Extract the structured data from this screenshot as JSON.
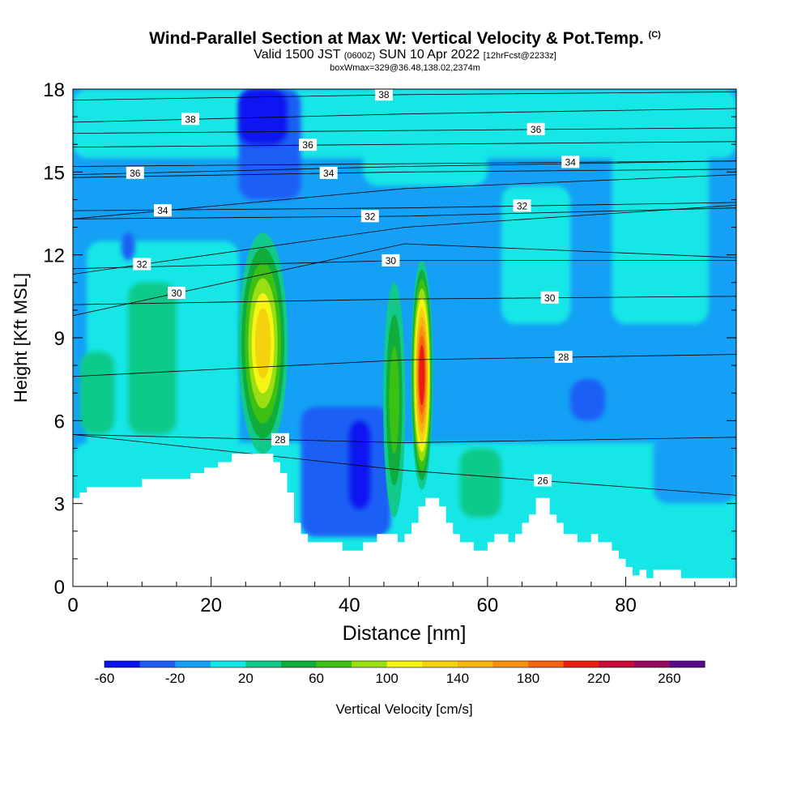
{
  "title": {
    "main": "Wind-Parallel Section at Max W: Vertical Velocity & Pot.Temp.",
    "main_suffix": "(C)",
    "valid_prefix": "Valid 1500 JST",
    "valid_zulu": "(0600Z)",
    "valid_date": "SUN 10 Apr 2022",
    "forecast": "[12hrFcst@2233z]",
    "box_info": "boxWmax=329@36.48,138.02,2374m"
  },
  "chart_data": {
    "type": "heatmap",
    "xlabel": "Distance [nm]",
    "ylabel": "Height [Kft MSL]",
    "xlim": [
      0,
      96
    ],
    "ylim": [
      0,
      18
    ],
    "x_ticks": [
      0,
      20,
      40,
      60,
      80
    ],
    "y_ticks": [
      0,
      3,
      6,
      9,
      12,
      15,
      18
    ],
    "grid": false,
    "colorbar": {
      "label": "Vertical Velocity [cm/s]",
      "tick_labels": [
        -60,
        -20,
        20,
        60,
        100,
        140,
        180,
        220,
        260
      ],
      "levels": [
        -60,
        -40,
        -20,
        0,
        20,
        40,
        60,
        80,
        100,
        120,
        140,
        160,
        180,
        200,
        220,
        240,
        260,
        280
      ],
      "colors": [
        "#0a14f0",
        "#1e5ef5",
        "#14a0f5",
        "#12e6e6",
        "#11c98a",
        "#10ac3c",
        "#3cc014",
        "#9ade14",
        "#f5f514",
        "#f5d20f",
        "#f5b40f",
        "#f5910f",
        "#f5640f",
        "#eb1e14",
        "#c80a37",
        "#960a64",
        "#5a0a8c"
      ]
    },
    "updraft_cores": [
      {
        "x": 27.5,
        "base_kft": 4.8,
        "top_kft": 12.8,
        "max_cms": 140
      },
      {
        "x": 46.5,
        "base_kft": 2.5,
        "top_kft": 11.0,
        "max_cms": 80
      },
      {
        "x": 50.5,
        "base_kft": 3.5,
        "top_kft": 11.8,
        "max_cms": 220
      }
    ],
    "terrain": {
      "x": [
        0,
        1,
        2,
        5,
        10,
        15,
        17,
        19,
        21,
        23,
        25,
        27,
        29,
        30,
        31,
        32,
        33,
        34,
        35,
        37,
        39,
        40,
        42,
        44,
        46,
        47,
        48,
        49,
        50,
        51,
        52,
        53,
        54,
        55,
        56,
        57,
        58,
        59,
        60,
        61,
        62,
        63,
        64,
        65,
        66,
        67,
        68,
        69,
        70,
        71,
        72,
        73,
        75,
        76,
        77,
        78,
        79,
        80,
        81,
        82,
        83,
        84,
        86,
        88,
        90,
        96
      ],
      "height_kft": [
        3.2,
        3.4,
        3.6,
        3.6,
        3.9,
        3.9,
        4.1,
        4.3,
        4.5,
        4.8,
        4.8,
        4.8,
        4.5,
        4.1,
        3.4,
        2.3,
        1.9,
        1.6,
        1.6,
        1.6,
        1.3,
        1.3,
        1.6,
        1.9,
        1.9,
        1.6,
        1.9,
        2.3,
        2.9,
        3.2,
        3.2,
        2.9,
        2.3,
        1.9,
        1.6,
        1.6,
        1.3,
        1.3,
        1.6,
        1.9,
        1.9,
        1.6,
        1.9,
        2.3,
        2.6,
        3.2,
        3.2,
        2.6,
        2.3,
        1.9,
        1.9,
        1.6,
        1.9,
        1.6,
        1.6,
        1.3,
        1.0,
        0.7,
        0.4,
        0.6,
        0.3,
        0.6,
        0.6,
        0.3,
        0.3,
        0.3
      ]
    },
    "theta_contours": [
      {
        "label": "26",
        "label_x": 68,
        "y_kft": [
          5.5,
          4.2,
          3.3
        ]
      },
      {
        "label": "28",
        "label_x": 30,
        "y_kft": [
          5.5,
          5.2,
          5.4
        ]
      },
      {
        "label": "28",
        "label_x": 71,
        "y_kft": [
          7.6,
          8.2,
          8.4
        ]
      },
      {
        "label": "30",
        "label_x": 15,
        "y_kft": [
          9.8,
          12.4,
          11.9
        ]
      },
      {
        "label": "30",
        "label_x": 46,
        "y_kft": [
          11.5,
          11.8,
          11.8
        ]
      },
      {
        "label": "30",
        "label_x": 69,
        "y_kft": [
          10.2,
          10.4,
          10.5
        ]
      },
      {
        "label": "32",
        "label_x": 10,
        "y_kft": [
          11.3,
          13.0,
          13.8
        ]
      },
      {
        "label": "32",
        "label_x": 43,
        "y_kft": [
          13.3,
          13.4,
          13.7
        ]
      },
      {
        "label": "32",
        "label_x": 65,
        "y_kft": [
          13.6,
          13.7,
          13.9
        ]
      },
      {
        "label": "34",
        "label_x": 13,
        "y_kft": [
          13.3,
          14.4,
          14.9
        ]
      },
      {
        "label": "34",
        "label_x": 37,
        "y_kft": [
          14.8,
          15.0,
          15.1
        ]
      },
      {
        "label": "34",
        "label_x": 72,
        "y_kft": [
          15.2,
          15.3,
          15.4
        ]
      },
      {
        "label": "36",
        "label_x": 9,
        "y_kft": [
          14.9,
          15.2,
          15.4
        ]
      },
      {
        "label": "36",
        "label_x": 34,
        "y_kft": [
          15.9,
          16.0,
          16.1
        ]
      },
      {
        "label": "36",
        "label_x": 67,
        "y_kft": [
          16.4,
          16.5,
          16.6
        ]
      },
      {
        "label": "38",
        "label_x": 17,
        "y_kft": [
          16.8,
          17.1,
          17.3
        ]
      },
      {
        "label": "38",
        "label_x": 45,
        "y_kft": [
          17.6,
          17.8,
          17.9
        ]
      }
    ]
  }
}
